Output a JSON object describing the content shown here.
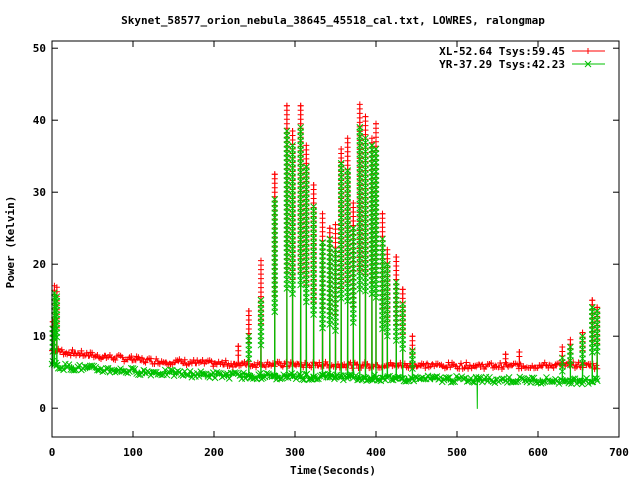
{
  "chart_data": {
    "type": "line",
    "title": "Skynet_58577_orion_nebula_38645_45518_cal.txt, LOWRES, ralongmap",
    "xlabel": "Time(Seconds)",
    "ylabel": "Power (Kelvin)",
    "xlim": [
      0,
      700
    ],
    "ylim": [
      -4,
      51
    ],
    "x_ticks": [
      0,
      100,
      200,
      300,
      400,
      500,
      600,
      700
    ],
    "y_ticks": [
      0,
      10,
      20,
      30,
      40,
      50
    ],
    "grid": false,
    "legend_position": "top-right",
    "series": [
      {
        "name": "XL-52.64 Tsys:59.45",
        "color": "#ff0000",
        "marker": "plus",
        "baseline": [
          [
            0,
            8.0
          ],
          [
            10,
            7.9
          ],
          [
            60,
            7.2
          ],
          [
            120,
            6.6
          ],
          [
            200,
            6.2
          ],
          [
            300,
            6.0
          ],
          [
            400,
            6.0
          ],
          [
            500,
            5.9
          ],
          [
            600,
            5.9
          ],
          [
            660,
            6.0
          ],
          [
            675,
            5.8
          ]
        ],
        "spikes": [
          [
            1,
            12.0
          ],
          [
            3,
            17.0
          ],
          [
            6,
            16.8
          ],
          [
            230,
            8.6
          ],
          [
            243,
            13.5
          ],
          [
            258,
            20.5
          ],
          [
            275,
            32.5
          ],
          [
            290,
            42.0
          ],
          [
            297,
            38.5
          ],
          [
            307,
            42.0
          ],
          [
            314,
            36.5
          ],
          [
            323,
            31.0
          ],
          [
            334,
            27.0
          ],
          [
            343,
            25.0
          ],
          [
            350,
            25.5
          ],
          [
            357,
            36.0
          ],
          [
            365,
            37.5
          ],
          [
            372,
            28.5
          ],
          [
            380,
            42.2
          ],
          [
            387,
            40.5
          ],
          [
            395,
            37.5
          ],
          [
            400,
            39.5
          ],
          [
            408,
            27.0
          ],
          [
            414,
            22.0
          ],
          [
            425,
            21.0
          ],
          [
            433,
            16.5
          ],
          [
            445,
            10.0
          ],
          [
            560,
            7.5
          ],
          [
            577,
            7.8
          ],
          [
            630,
            8.5
          ],
          [
            640,
            9.5
          ],
          [
            655,
            10.5
          ],
          [
            667,
            15.0
          ],
          [
            673,
            14.0
          ]
        ]
      },
      {
        "name": "YR-37.29 Tsys:42.23",
        "color": "#00c000",
        "marker": "cross",
        "baseline": [
          [
            0,
            6.2
          ],
          [
            10,
            5.8
          ],
          [
            60,
            5.4
          ],
          [
            120,
            5.0
          ],
          [
            200,
            4.6
          ],
          [
            300,
            4.4
          ],
          [
            400,
            4.2
          ],
          [
            500,
            4.0
          ],
          [
            600,
            3.9
          ],
          [
            660,
            3.8
          ],
          [
            675,
            3.9
          ]
        ],
        "spikes": [
          [
            1,
            11.0
          ],
          [
            3,
            16.0
          ],
          [
            6,
            15.5
          ],
          [
            243,
            10.0
          ],
          [
            258,
            15.0
          ],
          [
            275,
            29.0
          ],
          [
            290,
            38.5
          ],
          [
            297,
            36.5
          ],
          [
            307,
            39.0
          ],
          [
            314,
            33.5
          ],
          [
            323,
            28.0
          ],
          [
            334,
            23.0
          ],
          [
            343,
            23.5
          ],
          [
            350,
            22.0
          ],
          [
            357,
            34.0
          ],
          [
            365,
            33.0
          ],
          [
            372,
            25.0
          ],
          [
            380,
            39.0
          ],
          [
            387,
            37.5
          ],
          [
            395,
            36.5
          ],
          [
            400,
            36.0
          ],
          [
            408,
            23.5
          ],
          [
            414,
            20.0
          ],
          [
            425,
            17.5
          ],
          [
            433,
            14.5
          ],
          [
            445,
            8.0
          ],
          [
            525,
            -0.1
          ],
          [
            630,
            7.0
          ],
          [
            640,
            8.5
          ],
          [
            655,
            10.0
          ],
          [
            667,
            14.0
          ],
          [
            673,
            13.5
          ]
        ]
      }
    ]
  }
}
